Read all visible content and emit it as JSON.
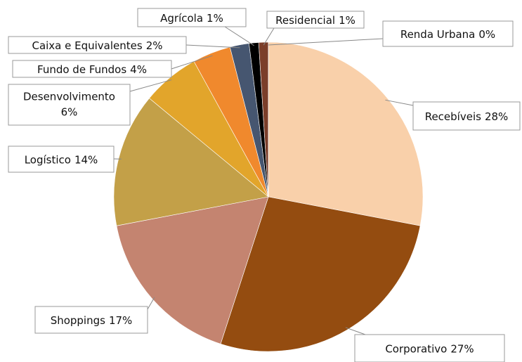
{
  "chart_data": {
    "type": "pie",
    "categories": [
      "Recebíveis",
      "Corporativo",
      "Shoppings",
      "Logístico",
      "Desenvolvimento",
      "Fundo de Fundos",
      "Caixa e Equivalentes",
      "Agrícola",
      "Residencial",
      "Renda Urbana"
    ],
    "values": [
      28,
      27,
      17,
      14,
      6,
      4,
      2,
      1,
      1,
      0
    ],
    "value_labels": [
      "28%",
      "27%",
      "17%",
      "14%",
      "6%",
      "4%",
      "2%",
      "1%",
      "1%",
      "0%"
    ],
    "colors": [
      "#f9d0aa",
      "#944c10",
      "#c48470",
      "#c3a048",
      "#e2a52b",
      "#f0892d",
      "#465670",
      "#000000",
      "#7b3e2a",
      "#6b6b2a"
    ]
  }
}
